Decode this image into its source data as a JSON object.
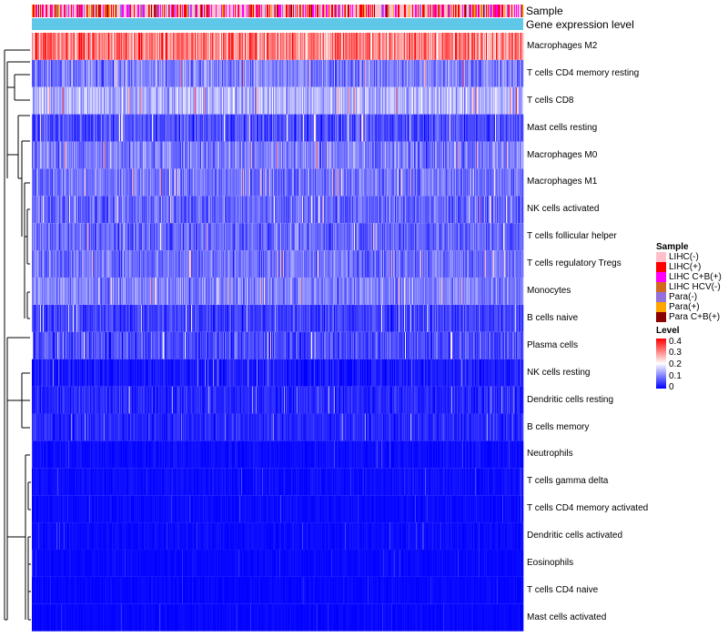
{
  "chart_data": {
    "type": "heatmap",
    "annotation_rows": [
      "Sample",
      "Gene expression level"
    ],
    "rows": [
      "Macrophages M2",
      "T cells CD4 memory resting",
      "T cells CD8",
      "Mast cells resting",
      "Macrophages M0",
      "Macrophages M1",
      "NK cells activated",
      "T cells follicular helper",
      "T cells regulatory  Tregs",
      "Monocytes",
      "B cells naive",
      "Plasma cells",
      "NK cells resting",
      "Dendritic cells resting",
      "B cells memory",
      "Neutrophils",
      "T cells gamma delta",
      "T cells CD4 memory activated",
      "Dendritic cells activated",
      "Eosinophils",
      "T cells CD4 naive",
      "Mast cells activated"
    ],
    "row_mean_level": [
      0.3,
      0.1,
      0.14,
      0.06,
      0.1,
      0.09,
      0.08,
      0.08,
      0.09,
      0.1,
      0.05,
      0.06,
      0.02,
      0.03,
      0.03,
      0.01,
      0.01,
      0.008,
      0.008,
      0.006,
      0.005,
      0.005
    ],
    "row_spread": [
      0.09,
      0.06,
      0.06,
      0.05,
      0.06,
      0.05,
      0.05,
      0.05,
      0.05,
      0.05,
      0.04,
      0.05,
      0.03,
      0.03,
      0.03,
      0.015,
      0.015,
      0.012,
      0.012,
      0.01,
      0.01,
      0.01
    ],
    "n_samples": 540,
    "legend_sample_title": "Sample",
    "sample_groups": [
      {
        "name": "LIHC(-)",
        "color": "#ffc0cb"
      },
      {
        "name": "LIHC(+)",
        "color": "#ff0000"
      },
      {
        "name": "LIHC C+B(+)",
        "color": "#ff00ff"
      },
      {
        "name": "LIHC HCV(-)",
        "color": "#d2691e"
      },
      {
        "name": "Para(-)",
        "color": "#9370db"
      },
      {
        "name": "Para(+)",
        "color": "#ffa500"
      },
      {
        "name": "Para C+B(+)",
        "color": "#8b0000"
      }
    ],
    "gene_expression_color": "#5fc8e8",
    "legend_level_title": "Level",
    "level_ticks": [
      "0.4",
      "0.3",
      "0.2",
      "0.1",
      "0"
    ],
    "level_range": [
      0,
      0.4
    ],
    "color_scale": {
      "low": "#0000ff",
      "mid": "#ffffff",
      "high": "#ff0000"
    }
  }
}
